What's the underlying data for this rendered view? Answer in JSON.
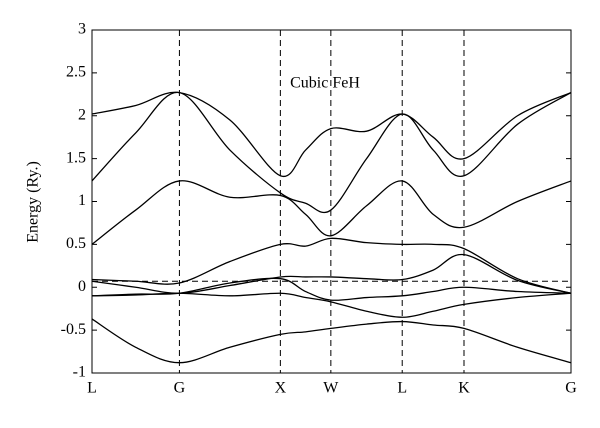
{
  "chart_data": {
    "type": "line",
    "title": "Cubic FeH",
    "ylabel": "Energy (Ry.)",
    "x": [
      0,
      0.433,
      0.866,
      1.366,
      1.866,
      2.116,
      2.366,
      2.72,
      3.073,
      3.38,
      3.685,
      4.215,
      4.745
    ],
    "xlim": [
      0,
      4.745
    ],
    "xticks": [
      {
        "value": 0,
        "label": "L"
      },
      {
        "value": 0.866,
        "label": "G"
      },
      {
        "value": 1.866,
        "label": "X"
      },
      {
        "value": 2.366,
        "label": "W"
      },
      {
        "value": 3.073,
        "label": "L"
      },
      {
        "value": 3.685,
        "label": "K"
      },
      {
        "value": 4.745,
        "label": "G"
      }
    ],
    "ylim": [
      -1,
      3
    ],
    "yticks": [
      -1,
      -0.5,
      0,
      0.5,
      1,
      1.5,
      2,
      2.5,
      3
    ],
    "fermi_level": 0.07,
    "color": "#000000",
    "series": [
      {
        "values": [
          2.02,
          2.12,
          2.27,
          1.95,
          1.3,
          1.6,
          1.85,
          1.82,
          2.02,
          1.75,
          1.5,
          2.0,
          2.27
        ]
      },
      {
        "values": [
          1.24,
          1.8,
          2.27,
          1.6,
          1.1,
          0.98,
          0.9,
          1.5,
          2.02,
          1.6,
          1.3,
          1.9,
          2.27
        ]
      },
      {
        "values": [
          0.5,
          0.9,
          1.24,
          1.05,
          1.07,
          0.85,
          0.6,
          0.95,
          1.24,
          0.85,
          0.7,
          1.0,
          1.24
        ]
      },
      {
        "values": [
          0.09,
          0.07,
          0.05,
          0.3,
          0.5,
          0.48,
          0.57,
          0.52,
          0.5,
          0.5,
          0.45,
          0.1,
          -0.07
        ]
      },
      {
        "values": [
          0.07,
          0.0,
          -0.07,
          0.02,
          0.12,
          0.12,
          0.12,
          0.1,
          0.09,
          0.2,
          0.38,
          0.08,
          -0.07
        ]
      },
      {
        "values": [
          -0.1,
          -0.08,
          -0.07,
          0.05,
          0.1,
          -0.05,
          -0.15,
          -0.12,
          -0.1,
          -0.05,
          0.0,
          -0.05,
          -0.07
        ]
      },
      {
        "values": [
          -0.1,
          -0.09,
          -0.07,
          -0.1,
          -0.07,
          -0.12,
          -0.17,
          -0.28,
          -0.35,
          -0.28,
          -0.2,
          -0.12,
          -0.07
        ]
      },
      {
        "values": [
          -0.37,
          -0.7,
          -0.88,
          -0.7,
          -0.55,
          -0.52,
          -0.48,
          -0.43,
          -0.4,
          -0.44,
          -0.48,
          -0.7,
          -0.88
        ]
      }
    ]
  }
}
